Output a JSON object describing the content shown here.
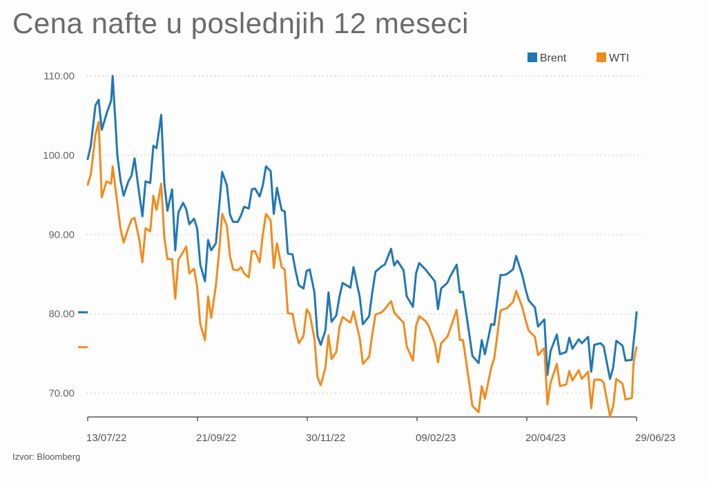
{
  "chart_data": {
    "type": "line",
    "title": "Cena nafte u poslednjih 12 meseci",
    "source": "Izvor: Bloomberg",
    "xlabel": "",
    "ylabel": "",
    "ylim": [
      67,
      110
    ],
    "y_ticks": [
      "110.00",
      "100.00",
      "90.00",
      "80.00",
      "70.00"
    ],
    "y_tick_values": [
      110,
      100,
      90,
      80,
      70
    ],
    "x_tick_labels": [
      "13/07/22",
      "21/09/22",
      "30/11/22",
      "09/02/23",
      "20/04/23",
      "29/06/23"
    ],
    "x_range": [
      "2022-07-13",
      "2023-06-29"
    ],
    "grid": "horizontal dotted",
    "legend_position": "top-right",
    "series": [
      {
        "name": "Brent",
        "color": "#1f77b4",
        "last_value": 80.2,
        "points": [
          [
            "2022-07-13",
            99.5
          ],
          [
            "2022-07-15",
            101.2
          ],
          [
            "2022-07-18",
            106.3
          ],
          [
            "2022-07-20",
            107.0
          ],
          [
            "2022-07-22",
            103.2
          ],
          [
            "2022-07-25",
            105.2
          ],
          [
            "2022-07-28",
            106.9
          ],
          [
            "2022-07-29",
            110.0
          ],
          [
            "2022-08-01",
            100.0
          ],
          [
            "2022-08-03",
            96.8
          ],
          [
            "2022-08-05",
            94.9
          ],
          [
            "2022-08-08",
            96.7
          ],
          [
            "2022-08-10",
            97.4
          ],
          [
            "2022-08-12",
            99.6
          ],
          [
            "2022-08-15",
            95.1
          ],
          [
            "2022-08-17",
            92.3
          ],
          [
            "2022-08-19",
            96.7
          ],
          [
            "2022-08-22",
            96.5
          ],
          [
            "2022-08-24",
            101.2
          ],
          [
            "2022-08-26",
            100.9
          ],
          [
            "2022-08-29",
            105.1
          ],
          [
            "2022-08-31",
            96.5
          ],
          [
            "2022-09-02",
            93.0
          ],
          [
            "2022-09-05",
            95.7
          ],
          [
            "2022-09-07",
            88.0
          ],
          [
            "2022-09-09",
            92.8
          ],
          [
            "2022-09-12",
            94.0
          ],
          [
            "2022-09-14",
            93.2
          ],
          [
            "2022-09-16",
            91.3
          ],
          [
            "2022-09-19",
            92.0
          ],
          [
            "2022-09-21",
            90.8
          ],
          [
            "2022-09-23",
            86.2
          ],
          [
            "2022-09-26",
            84.1
          ],
          [
            "2022-09-28",
            89.3
          ],
          [
            "2022-09-30",
            88.0
          ],
          [
            "2022-10-03",
            88.9
          ],
          [
            "2022-10-05",
            93.4
          ],
          [
            "2022-10-07",
            97.9
          ],
          [
            "2022-10-10",
            96.2
          ],
          [
            "2022-10-12",
            92.5
          ],
          [
            "2022-10-14",
            91.6
          ],
          [
            "2022-10-17",
            91.6
          ],
          [
            "2022-10-19",
            92.4
          ],
          [
            "2022-10-21",
            93.5
          ],
          [
            "2022-10-24",
            93.3
          ],
          [
            "2022-10-26",
            95.7
          ],
          [
            "2022-10-28",
            95.8
          ],
          [
            "2022-10-31",
            94.8
          ],
          [
            "2022-11-02",
            96.2
          ],
          [
            "2022-11-04",
            98.6
          ],
          [
            "2022-11-07",
            98.0
          ],
          [
            "2022-11-09",
            92.6
          ],
          [
            "2022-11-11",
            95.9
          ],
          [
            "2022-11-14",
            93.1
          ],
          [
            "2022-11-16",
            92.9
          ],
          [
            "2022-11-18",
            87.6
          ],
          [
            "2022-11-21",
            87.5
          ],
          [
            "2022-11-23",
            85.4
          ],
          [
            "2022-11-25",
            83.6
          ],
          [
            "2022-11-28",
            83.2
          ],
          [
            "2022-11-30",
            85.4
          ],
          [
            "2022-12-02",
            85.6
          ],
          [
            "2022-12-05",
            82.7
          ],
          [
            "2022-12-07",
            77.2
          ],
          [
            "2022-12-09",
            76.1
          ],
          [
            "2022-12-12",
            77.9
          ],
          [
            "2022-12-14",
            82.7
          ],
          [
            "2022-12-16",
            79.0
          ],
          [
            "2022-12-19",
            79.8
          ],
          [
            "2022-12-21",
            82.2
          ],
          [
            "2022-12-23",
            83.9
          ],
          [
            "2022-12-28",
            83.3
          ],
          [
            "2022-12-30",
            85.9
          ],
          [
            "2023-01-03",
            82.1
          ],
          [
            "2023-01-05",
            78.7
          ],
          [
            "2023-01-09",
            79.7
          ],
          [
            "2023-01-11",
            82.7
          ],
          [
            "2023-01-13",
            85.3
          ],
          [
            "2023-01-17",
            86.0
          ],
          [
            "2023-01-19",
            86.2
          ],
          [
            "2023-01-23",
            88.2
          ],
          [
            "2023-01-25",
            86.1
          ],
          [
            "2023-01-27",
            86.7
          ],
          [
            "2023-01-31",
            85.5
          ],
          [
            "2023-02-02",
            82.2
          ],
          [
            "2023-02-06",
            80.9
          ],
          [
            "2023-02-08",
            85.1
          ],
          [
            "2023-02-10",
            86.4
          ],
          [
            "2023-02-14",
            85.6
          ],
          [
            "2023-02-16",
            85.1
          ],
          [
            "2023-02-20",
            84.1
          ],
          [
            "2023-02-22",
            80.6
          ],
          [
            "2023-02-24",
            83.2
          ],
          [
            "2023-02-28",
            83.9
          ],
          [
            "2023-03-02",
            84.8
          ],
          [
            "2023-03-06",
            86.2
          ],
          [
            "2023-03-08",
            82.7
          ],
          [
            "2023-03-10",
            82.8
          ],
          [
            "2023-03-14",
            77.5
          ],
          [
            "2023-03-16",
            74.7
          ],
          [
            "2023-03-20",
            73.8
          ],
          [
            "2023-03-22",
            76.7
          ],
          [
            "2023-03-24",
            74.9
          ],
          [
            "2023-03-28",
            78.7
          ],
          [
            "2023-03-30",
            78.6
          ],
          [
            "2023-04-03",
            84.9
          ],
          [
            "2023-04-05",
            84.9
          ],
          [
            "2023-04-07",
            85.0
          ],
          [
            "2023-04-11",
            85.6
          ],
          [
            "2023-04-13",
            87.3
          ],
          [
            "2023-04-17",
            84.8
          ],
          [
            "2023-04-19",
            83.1
          ],
          [
            "2023-04-21",
            81.7
          ],
          [
            "2023-04-25",
            80.8
          ],
          [
            "2023-04-27",
            78.4
          ],
          [
            "2023-05-01",
            79.3
          ],
          [
            "2023-05-03",
            72.3
          ],
          [
            "2023-05-05",
            75.3
          ],
          [
            "2023-05-09",
            77.4
          ],
          [
            "2023-05-11",
            74.9
          ],
          [
            "2023-05-15",
            75.2
          ],
          [
            "2023-05-17",
            77.0
          ],
          [
            "2023-05-19",
            75.6
          ],
          [
            "2023-05-23",
            76.8
          ],
          [
            "2023-05-25",
            76.3
          ],
          [
            "2023-05-29",
            77.1
          ],
          [
            "2023-05-31",
            72.7
          ],
          [
            "2023-06-02",
            76.1
          ],
          [
            "2023-06-06",
            76.3
          ],
          [
            "2023-06-08",
            75.9
          ],
          [
            "2023-06-12",
            71.8
          ],
          [
            "2023-06-14",
            73.2
          ],
          [
            "2023-06-16",
            76.6
          ],
          [
            "2023-06-20",
            76.0
          ],
          [
            "2023-06-22",
            74.1
          ],
          [
            "2023-06-26",
            74.2
          ],
          [
            "2023-06-27",
            76.3
          ],
          [
            "2023-06-28",
            78.0
          ],
          [
            "2023-06-29",
            80.2
          ]
        ]
      },
      {
        "name": "WTI",
        "color": "#f28a1c",
        "last_value": 75.8,
        "points": [
          [
            "2022-07-13",
            96.3
          ],
          [
            "2022-07-15",
            97.6
          ],
          [
            "2022-07-18",
            102.6
          ],
          [
            "2022-07-20",
            104.2
          ],
          [
            "2022-07-22",
            94.7
          ],
          [
            "2022-07-25",
            96.7
          ],
          [
            "2022-07-28",
            96.4
          ],
          [
            "2022-07-29",
            98.6
          ],
          [
            "2022-08-01",
            93.9
          ],
          [
            "2022-08-03",
            90.7
          ],
          [
            "2022-08-05",
            89.0
          ],
          [
            "2022-08-08",
            90.8
          ],
          [
            "2022-08-10",
            91.9
          ],
          [
            "2022-08-12",
            92.1
          ],
          [
            "2022-08-15",
            89.4
          ],
          [
            "2022-08-17",
            86.5
          ],
          [
            "2022-08-19",
            90.8
          ],
          [
            "2022-08-22",
            90.4
          ],
          [
            "2022-08-24",
            94.9
          ],
          [
            "2022-08-26",
            93.1
          ],
          [
            "2022-08-29",
            96.4
          ],
          [
            "2022-08-31",
            89.6
          ],
          [
            "2022-09-02",
            86.9
          ],
          [
            "2022-09-05",
            86.9
          ],
          [
            "2022-09-07",
            81.9
          ],
          [
            "2022-09-09",
            86.8
          ],
          [
            "2022-09-12",
            87.8
          ],
          [
            "2022-09-14",
            88.5
          ],
          [
            "2022-09-16",
            85.1
          ],
          [
            "2022-09-19",
            85.7
          ],
          [
            "2022-09-21",
            83.5
          ],
          [
            "2022-09-23",
            78.7
          ],
          [
            "2022-09-26",
            76.7
          ],
          [
            "2022-09-28",
            82.2
          ],
          [
            "2022-09-30",
            79.5
          ],
          [
            "2022-10-03",
            83.6
          ],
          [
            "2022-10-05",
            87.8
          ],
          [
            "2022-10-07",
            92.6
          ],
          [
            "2022-10-10",
            91.1
          ],
          [
            "2022-10-12",
            87.3
          ],
          [
            "2022-10-14",
            85.6
          ],
          [
            "2022-10-17",
            85.5
          ],
          [
            "2022-10-19",
            85.9
          ],
          [
            "2022-10-21",
            85.1
          ],
          [
            "2022-10-24",
            84.6
          ],
          [
            "2022-10-26",
            87.9
          ],
          [
            "2022-10-28",
            87.9
          ],
          [
            "2022-10-31",
            86.5
          ],
          [
            "2022-11-02",
            90.0
          ],
          [
            "2022-11-04",
            92.6
          ],
          [
            "2022-11-07",
            91.8
          ],
          [
            "2022-11-09",
            85.8
          ],
          [
            "2022-11-11",
            88.9
          ],
          [
            "2022-11-14",
            85.9
          ],
          [
            "2022-11-16",
            85.6
          ],
          [
            "2022-11-18",
            80.1
          ],
          [
            "2022-11-21",
            80.0
          ],
          [
            "2022-11-23",
            77.9
          ],
          [
            "2022-11-25",
            76.3
          ],
          [
            "2022-11-28",
            77.2
          ],
          [
            "2022-11-30",
            80.6
          ],
          [
            "2022-12-02",
            80.0
          ],
          [
            "2022-12-05",
            76.9
          ],
          [
            "2022-12-07",
            72.0
          ],
          [
            "2022-12-09",
            71.0
          ],
          [
            "2022-12-12",
            73.2
          ],
          [
            "2022-12-14",
            77.3
          ],
          [
            "2022-12-16",
            74.3
          ],
          [
            "2022-12-19",
            75.2
          ],
          [
            "2022-12-21",
            78.3
          ],
          [
            "2022-12-23",
            79.6
          ],
          [
            "2022-12-28",
            78.9
          ],
          [
            "2022-12-30",
            80.3
          ],
          [
            "2023-01-03",
            76.9
          ],
          [
            "2023-01-05",
            73.7
          ],
          [
            "2023-01-09",
            74.6
          ],
          [
            "2023-01-11",
            77.4
          ],
          [
            "2023-01-13",
            79.9
          ],
          [
            "2023-01-17",
            80.2
          ],
          [
            "2023-01-19",
            80.6
          ],
          [
            "2023-01-23",
            81.6
          ],
          [
            "2023-01-25",
            80.2
          ],
          [
            "2023-01-27",
            79.7
          ],
          [
            "2023-01-31",
            78.9
          ],
          [
            "2023-02-02",
            75.9
          ],
          [
            "2023-02-06",
            74.1
          ],
          [
            "2023-02-08",
            78.5
          ],
          [
            "2023-02-10",
            79.7
          ],
          [
            "2023-02-14",
            79.1
          ],
          [
            "2023-02-16",
            78.5
          ],
          [
            "2023-02-20",
            76.3
          ],
          [
            "2023-02-22",
            73.9
          ],
          [
            "2023-02-24",
            76.3
          ],
          [
            "2023-02-28",
            77.1
          ],
          [
            "2023-03-02",
            78.2
          ],
          [
            "2023-03-06",
            80.5
          ],
          [
            "2023-03-08",
            76.7
          ],
          [
            "2023-03-10",
            76.7
          ],
          [
            "2023-03-14",
            71.3
          ],
          [
            "2023-03-16",
            68.4
          ],
          [
            "2023-03-20",
            67.6
          ],
          [
            "2023-03-22",
            70.9
          ],
          [
            "2023-03-24",
            69.3
          ],
          [
            "2023-03-28",
            73.2
          ],
          [
            "2023-03-30",
            74.4
          ],
          [
            "2023-04-03",
            80.4
          ],
          [
            "2023-04-05",
            80.6
          ],
          [
            "2023-04-07",
            80.7
          ],
          [
            "2023-04-11",
            81.5
          ],
          [
            "2023-04-13",
            82.9
          ],
          [
            "2023-04-17",
            80.8
          ],
          [
            "2023-04-19",
            79.2
          ],
          [
            "2023-04-21",
            77.9
          ],
          [
            "2023-04-25",
            77.1
          ],
          [
            "2023-04-27",
            74.8
          ],
          [
            "2023-05-01",
            75.7
          ],
          [
            "2023-05-03",
            68.6
          ],
          [
            "2023-05-05",
            71.3
          ],
          [
            "2023-05-09",
            73.7
          ],
          [
            "2023-05-11",
            70.9
          ],
          [
            "2023-05-15",
            71.1
          ],
          [
            "2023-05-17",
            72.8
          ],
          [
            "2023-05-19",
            71.6
          ],
          [
            "2023-05-23",
            72.9
          ],
          [
            "2023-05-25",
            71.8
          ],
          [
            "2023-05-29",
            72.7
          ],
          [
            "2023-05-31",
            68.1
          ],
          [
            "2023-06-02",
            71.7
          ],
          [
            "2023-06-06",
            71.7
          ],
          [
            "2023-06-08",
            71.3
          ],
          [
            "2023-06-12",
            67.1
          ],
          [
            "2023-06-14",
            68.3
          ],
          [
            "2023-06-16",
            71.8
          ],
          [
            "2023-06-20",
            71.2
          ],
          [
            "2023-06-22",
            69.2
          ],
          [
            "2023-06-26",
            69.4
          ],
          [
            "2023-06-27",
            73.6
          ],
          [
            "2023-06-28",
            74.9
          ],
          [
            "2023-06-29",
            75.8
          ]
        ]
      }
    ]
  }
}
